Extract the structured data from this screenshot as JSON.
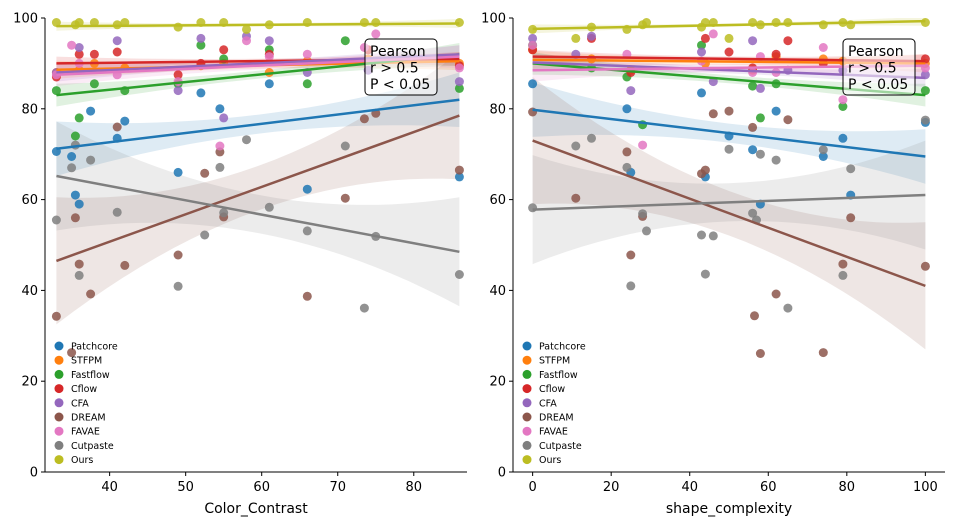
{
  "chart_data": [
    {
      "type": "scatter",
      "xlabel": "Color_Contrast",
      "ylabel": "",
      "xlim": [
        31.5,
        87
      ],
      "ylim": [
        0,
        100
      ],
      "xticks": [
        40,
        50,
        60,
        70,
        80
      ],
      "yticks": [
        0,
        20,
        40,
        60,
        80,
        100
      ],
      "annotation": [
        "Pearson",
        "r > 0.5",
        "P < 0.05"
      ],
      "legend_position": "lower-left",
      "series": [
        {
          "name": "Patchcore",
          "color": "#1f77b4",
          "fit": [
            [
              33,
              71.2
            ],
            [
              86,
              82
            ]
          ],
          "ci": 6,
          "x": [
            33,
            35,
            35.5,
            36,
            37.5,
            41,
            42,
            49,
            52,
            54.5,
            61,
            66,
            86
          ],
          "y": [
            70.6,
            69.5,
            61,
            59,
            79.5,
            73.5,
            77.3,
            66,
            83.5,
            80,
            85.5,
            62.3,
            65
          ]
        },
        {
          "name": "STFPM",
          "color": "#ff7f0e",
          "fit": [
            [
              33,
              88.6
            ],
            [
              86,
              90.5
            ]
          ],
          "ci": 2,
          "x": [
            33,
            36,
            38,
            42,
            52,
            55,
            61,
            66,
            74,
            86
          ],
          "y": [
            88,
            88.5,
            90,
            89,
            89.5,
            90,
            88,
            90.5,
            91,
            90
          ]
        },
        {
          "name": "Fastflow",
          "color": "#2ca02c",
          "fit": [
            [
              33,
              83
            ],
            [
              86,
              92
            ]
          ],
          "ci": 2.5,
          "x": [
            33,
            35.5,
            36,
            38,
            42,
            49,
            52,
            55,
            61,
            66,
            71,
            86
          ],
          "y": [
            84,
            74,
            78,
            85.5,
            84,
            85.5,
            94,
            91,
            93,
            85.5,
            95,
            84.5
          ]
        },
        {
          "name": "Cflow",
          "color": "#d62728",
          "fit": [
            [
              33,
              90
            ],
            [
              86,
              91
            ]
          ],
          "ci": 1.5,
          "x": [
            33,
            36,
            38,
            41,
            49,
            52,
            55,
            61,
            74,
            86
          ],
          "y": [
            87,
            92,
            92,
            92.5,
            87.5,
            90,
            93,
            92,
            93,
            89.5
          ]
        },
        {
          "name": "CFA",
          "color": "#9467bd",
          "fit": [
            [
              33,
              88
            ],
            [
              86,
              92
            ]
          ],
          "ci": 2,
          "x": [
            33,
            36,
            41,
            49,
            52,
            55,
            58,
            61,
            66,
            74,
            86
          ],
          "y": [
            88,
            93.5,
            95,
            84,
            95.5,
            78,
            96,
            95,
            88,
            88.5,
            86
          ]
        },
        {
          "name": "DREAM",
          "color": "#8c564b",
          "fit": [
            [
              33,
              46.5
            ],
            [
              86,
              78.5
            ]
          ],
          "ci": 14,
          "x": [
            33,
            35,
            35.5,
            36,
            37.5,
            41,
            42,
            49,
            52.5,
            54.5,
            55,
            66,
            71,
            73.5,
            75,
            86
          ],
          "y": [
            34.3,
            26.3,
            56,
            45.8,
            39.2,
            76,
            45.5,
            47.8,
            65.8,
            70.5,
            56.2,
            38.7,
            60.3,
            77.8,
            79,
            66.5
          ]
        },
        {
          "name": "FAVAE",
          "color": "#e377c2",
          "fit": [
            [
              33,
              87.5
            ],
            [
              86,
              91.5
            ]
          ],
          "ci": 2.5,
          "x": [
            33,
            35,
            36,
            41,
            49,
            54.5,
            58,
            61,
            66,
            73.5,
            75,
            86
          ],
          "y": [
            87.5,
            94,
            90,
            87.5,
            86,
            71.8,
            95,
            91.5,
            92,
            93.5,
            96.5,
            89
          ]
        },
        {
          "name": "Cutpaste",
          "color": "#7f7f7f",
          "fit": [
            [
              33,
              65.2
            ],
            [
              86,
              48.5
            ]
          ],
          "ci": 12,
          "x": [
            33,
            35,
            35.5,
            36,
            37.5,
            41,
            49,
            52.5,
            54.5,
            55,
            58,
            61,
            66,
            71,
            73.5,
            75,
            86
          ],
          "y": [
            55.5,
            67,
            72,
            43.3,
            68.7,
            57.2,
            40.9,
            52.2,
            67.1,
            57.1,
            73.2,
            58.3,
            53.1,
            71.8,
            36.1,
            51.9,
            43.5
          ]
        },
        {
          "name": "Ours",
          "color": "#bcbd22",
          "fit": [
            [
              33,
              98.2
            ],
            [
              86,
              98.8
            ]
          ],
          "ci": 1,
          "x": [
            33,
            35.5,
            36,
            38,
            41,
            42,
            49,
            52,
            55,
            58,
            61,
            66,
            73.5,
            75,
            86
          ],
          "y": [
            99,
            98.5,
            99,
            99,
            98.5,
            99,
            98,
            99,
            99,
            97.5,
            98.5,
            99,
            99,
            99,
            99
          ]
        }
      ]
    },
    {
      "type": "scatter",
      "xlabel": "shape_complexity",
      "ylabel": "",
      "xlim": [
        -5,
        105
      ],
      "ylim": [
        0,
        100
      ],
      "xticks": [
        0,
        20,
        40,
        60,
        80,
        100
      ],
      "yticks": [
        0,
        20,
        40,
        60,
        80,
        100
      ],
      "annotation": [
        "Pearson",
        "r > 0.5",
        "P < 0.05"
      ],
      "legend_position": "lower-left",
      "series": [
        {
          "name": "Patchcore",
          "color": "#1f77b4",
          "fit": [
            [
              0,
              79.8
            ],
            [
              100,
              69.5
            ]
          ],
          "ci": 6,
          "x": [
            0,
            24,
            25,
            43,
            44,
            50,
            56,
            58,
            62,
            74,
            79,
            81,
            100
          ],
          "y": [
            85.5,
            80,
            66,
            83.5,
            65,
            74,
            71,
            59,
            79.5,
            69.5,
            73.5,
            61,
            77
          ]
        },
        {
          "name": "STFPM",
          "color": "#ff7f0e",
          "fit": [
            [
              0,
              90.8
            ],
            [
              100,
              90
            ]
          ],
          "ci": 2,
          "x": [
            0,
            15,
            25,
            44,
            56,
            62,
            74,
            79,
            100
          ],
          "y": [
            93,
            91,
            88.5,
            90,
            88.5,
            91.5,
            91,
            90.5,
            90
          ]
        },
        {
          "name": "Fastflow",
          "color": "#2ca02c",
          "fit": [
            [
              0,
              90
            ],
            [
              100,
              83
            ]
          ],
          "ci": 2.5,
          "x": [
            0,
            15,
            24,
            28,
            43,
            56,
            58,
            62,
            79,
            100
          ],
          "y": [
            94,
            89,
            87,
            76.5,
            94,
            85,
            78,
            85.5,
            80.5,
            84
          ]
        },
        {
          "name": "Cflow",
          "color": "#d62728",
          "fit": [
            [
              0,
              91.5
            ],
            [
              100,
              90.5
            ]
          ],
          "ci": 1.5,
          "x": [
            0,
            15,
            25,
            44,
            50,
            56,
            62,
            65,
            74,
            100
          ],
          "y": [
            93,
            95.5,
            88,
            95.5,
            92.5,
            89,
            92,
            95,
            90,
            91
          ]
        },
        {
          "name": "CFA",
          "color": "#9467bd",
          "fit": [
            [
              0,
              90.2
            ],
            [
              100,
              86.8
            ]
          ],
          "ci": 2,
          "x": [
            0,
            11,
            15,
            25,
            43,
            46,
            56,
            58,
            65,
            79,
            100
          ],
          "y": [
            95.5,
            92,
            96,
            84,
            92.5,
            86,
            95,
            84.5,
            88.5,
            88.5,
            87.5
          ]
        },
        {
          "name": "DREAM",
          "color": "#8c564b",
          "fit": [
            [
              0,
              73
            ],
            [
              100,
              41
            ]
          ],
          "ci": 14,
          "x": [
            0,
            11,
            24,
            25,
            28,
            43,
            44,
            46,
            50,
            56,
            56.5,
            58,
            62,
            65,
            74,
            79,
            81,
            100
          ],
          "y": [
            79.3,
            60.3,
            70.5,
            47.8,
            56.3,
            65.7,
            66.5,
            78.9,
            79.5,
            75.9,
            34.4,
            26.1,
            39.2,
            77.6,
            26.3,
            45.8,
            56,
            45.3
          ]
        },
        {
          "name": "FAVAE",
          "color": "#e377c2",
          "fit": [
            [
              0,
              88.5
            ],
            [
              100,
              89.5
            ]
          ],
          "ci": 2.5,
          "x": [
            0,
            24,
            28,
            43,
            46,
            56,
            58,
            62,
            74,
            79,
            100
          ],
          "y": [
            94,
            92,
            72,
            90.5,
            96.5,
            88,
            91.5,
            88,
            93.5,
            82,
            89
          ]
        },
        {
          "name": "Cutpaste",
          "color": "#7f7f7f",
          "fit": [
            [
              0,
              57.8
            ],
            [
              100,
              61
            ]
          ],
          "ci": 12,
          "x": [
            0,
            11,
            15,
            24,
            25,
            28,
            29,
            43,
            44,
            46,
            50,
            56,
            57,
            58,
            62,
            65,
            74,
            79,
            81,
            100
          ],
          "y": [
            58.2,
            71.8,
            73.5,
            67.1,
            41,
            56.9,
            53.1,
            52.2,
            43.6,
            52,
            71.1,
            57,
            55.5,
            70,
            68.7,
            36.1,
            71,
            43.3,
            66.8,
            77.5
          ]
        },
        {
          "name": "Ours",
          "color": "#bcbd22",
          "fit": [
            [
              0,
              97.6
            ],
            [
              100,
              99.3
            ]
          ],
          "ci": 1,
          "x": [
            0,
            11,
            15,
            24,
            28,
            29,
            43,
            44,
            46,
            50,
            56,
            58,
            62,
            65,
            74,
            79,
            81,
            100
          ],
          "y": [
            97.5,
            95.5,
            98,
            97.5,
            98.5,
            99,
            98,
            99,
            99,
            95.5,
            99,
            98.5,
            99,
            99,
            98.5,
            99,
            98.5,
            99
          ]
        }
      ]
    }
  ]
}
